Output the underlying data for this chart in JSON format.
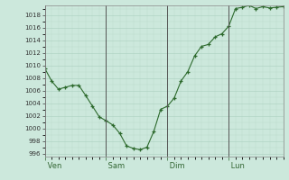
{
  "x_values": [
    0,
    1,
    2,
    3,
    4,
    5,
    6,
    7,
    8,
    9,
    10,
    11,
    12,
    13,
    14,
    15,
    16,
    17,
    18,
    19,
    20,
    21,
    22,
    23,
    24,
    25,
    26,
    27,
    28,
    29,
    30,
    31,
    32,
    33,
    34,
    35
  ],
  "y_values": [
    1009.5,
    1007.5,
    1006.2,
    1006.5,
    1006.8,
    1006.8,
    1005.2,
    1003.5,
    1001.8,
    1001.2,
    1000.5,
    999.2,
    997.2,
    996.8,
    996.6,
    997.0,
    999.5,
    1003.0,
    1003.5,
    1004.8,
    1007.5,
    1009.0,
    1011.5,
    1013.0,
    1013.3,
    1014.5,
    1015.0,
    1016.2,
    1019.0,
    1019.2,
    1019.5,
    1019.0,
    1019.3,
    1019.1,
    1019.2,
    1019.3
  ],
  "xlim": [
    0,
    35
  ],
  "ylim": [
    995.5,
    1019.5
  ],
  "ytick_values": [
    996,
    998,
    1000,
    1002,
    1004,
    1006,
    1008,
    1010,
    1012,
    1014,
    1016,
    1018
  ],
  "xtick_labels": [
    " Ven",
    " Sam",
    " Dim",
    " Lun"
  ],
  "vline_positions": [
    0,
    9,
    18,
    27
  ],
  "line_color": "#2d6a2d",
  "marker_color": "#2d6a2d",
  "bg_color": "#cce8dc",
  "grid_color_major": "#aacfbf",
  "grid_color_minor": "#bbdacc",
  "vline_color": "#555555",
  "figwidth": 3.2,
  "figheight": 2.0,
  "dpi": 100
}
